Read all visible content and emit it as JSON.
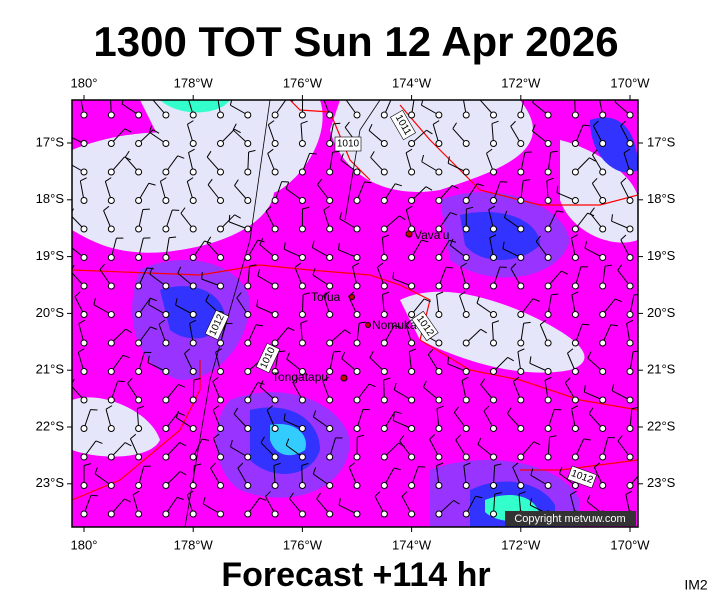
{
  "header": {
    "title": "1300 TOT Sun 12 Apr 2026"
  },
  "map": {
    "lon_labels": [
      "180°",
      "178°W",
      "176°W",
      "174°W",
      "172°W",
      "170°W"
    ],
    "lat_labels": [
      "17°S",
      "18°S",
      "19°S",
      "20°S",
      "21°S",
      "22°S",
      "23°S"
    ],
    "places": [
      "Vava'u",
      "Tofua",
      "Nomuka",
      "Tongatapu"
    ],
    "isobar_labels": [
      "1011",
      "1010",
      "1012",
      "1010",
      "1012",
      "1012"
    ],
    "copyright": "Copyright metvuw.com"
  },
  "footer": {
    "forecast": "Forecast +114 hr",
    "id": "IM2"
  }
}
